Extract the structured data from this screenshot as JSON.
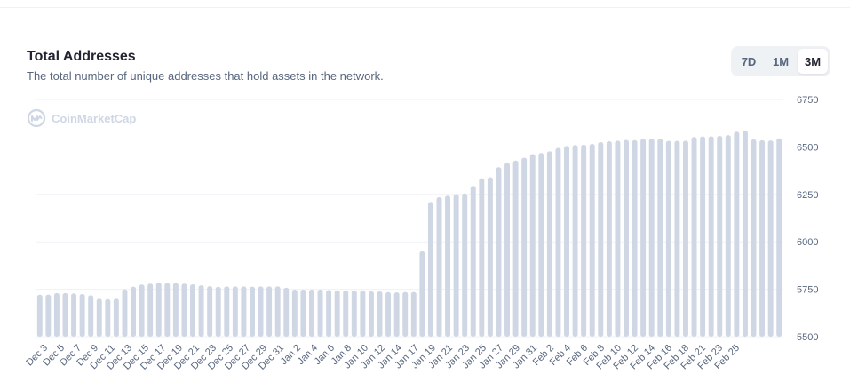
{
  "header": {
    "title": "Total Addresses",
    "subtitle": "The total number of unique addresses that hold assets in the network."
  },
  "range_switch": {
    "options": [
      "7D",
      "1M",
      "3M"
    ],
    "selected": "3M"
  },
  "watermark": {
    "text": "CoinMarketCap",
    "icon": "coinmarketcap-logo-icon"
  },
  "colors": {
    "bar": "#cfd6e4",
    "grid": "#eff2f5",
    "axis_text": "#58667e"
  },
  "chart_data": {
    "type": "bar",
    "title": "Total Addresses",
    "ylim": [
      5500,
      6750
    ],
    "yticks": [
      5500,
      5750,
      6000,
      6250,
      6500,
      6750
    ],
    "grid": true,
    "tick_labels": [
      "Dec 3",
      "Dec 5",
      "Dec 7",
      "Dec 9",
      "Dec 11",
      "Dec 13",
      "Dec 15",
      "Dec 17",
      "Dec 19",
      "Dec 21",
      "Dec 23",
      "Dec 25",
      "Dec 27",
      "Dec 29",
      "Dec 31",
      "Jan 2",
      "Jan 4",
      "Jan 6",
      "Jan 8",
      "Jan 10",
      "Jan 12",
      "Jan 14",
      "Jan 17",
      "Jan 19",
      "Jan 21",
      "Jan 23",
      "Jan 25",
      "Jan 27",
      "Jan 29",
      "Jan 31",
      "Feb 2",
      "Feb 4",
      "Feb 6",
      "Feb 8",
      "Feb 10",
      "Feb 12",
      "Feb 14",
      "Feb 16",
      "Feb 18",
      "Feb 21",
      "Feb 23",
      "Feb 25"
    ],
    "values": [
      5721,
      5722,
      5730,
      5730,
      5728,
      5725,
      5718,
      5700,
      5698,
      5700,
      5750,
      5764,
      5775,
      5780,
      5785,
      5783,
      5783,
      5780,
      5776,
      5771,
      5766,
      5763,
      5765,
      5765,
      5765,
      5764,
      5765,
      5765,
      5765,
      5758,
      5748,
      5748,
      5748,
      5748,
      5746,
      5744,
      5744,
      5744,
      5744,
      5740,
      5739,
      5735,
      5734,
      5736,
      5736,
      5950,
      6210,
      6235,
      6243,
      6250,
      6255,
      6295,
      6335,
      6340,
      6393,
      6416,
      6428,
      6443,
      6462,
      6468,
      6477,
      6495,
      6505,
      6510,
      6512,
      6516,
      6525,
      6530,
      6533,
      6537,
      6536,
      6542,
      6542,
      6542,
      6532,
      6532,
      6533,
      6552,
      6555,
      6556,
      6558,
      6562,
      6580,
      6585,
      6540,
      6535,
      6534,
      6545
    ]
  }
}
